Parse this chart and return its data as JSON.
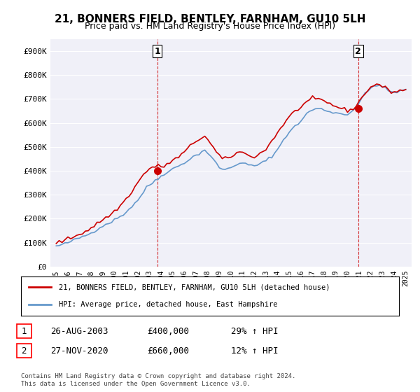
{
  "title": "21, BONNERS FIELD, BENTLEY, FARNHAM, GU10 5LH",
  "subtitle": "Price paid vs. HM Land Registry's House Price Index (HPI)",
  "legend_line1": "21, BONNERS FIELD, BENTLEY, FARNHAM, GU10 5LH (detached house)",
  "legend_line2": "HPI: Average price, detached house, East Hampshire",
  "annotation1_label": "1",
  "annotation1_date": "26-AUG-2003",
  "annotation1_price": "£400,000",
  "annotation1_hpi": "29% ↑ HPI",
  "annotation2_label": "2",
  "annotation2_date": "27-NOV-2020",
  "annotation2_price": "£660,000",
  "annotation2_hpi": "12% ↑ HPI",
  "footnote": "Contains HM Land Registry data © Crown copyright and database right 2024.\nThis data is licensed under the Open Government Licence v3.0.",
  "hpi_color": "#6699cc",
  "price_color": "#cc0000",
  "dashed_line_color": "#cc0000",
  "ylim": [
    0,
    950000
  ],
  "yticks": [
    0,
    100000,
    200000,
    300000,
    400000,
    500000,
    600000,
    700000,
    800000,
    900000
  ],
  "ytick_labels": [
    "£0",
    "£100K",
    "£200K",
    "£300K",
    "£400K",
    "£500K",
    "£600K",
    "£700K",
    "£800K",
    "£900K"
  ],
  "background_color": "#ffffff",
  "plot_bg_color": "#f0f0f8"
}
